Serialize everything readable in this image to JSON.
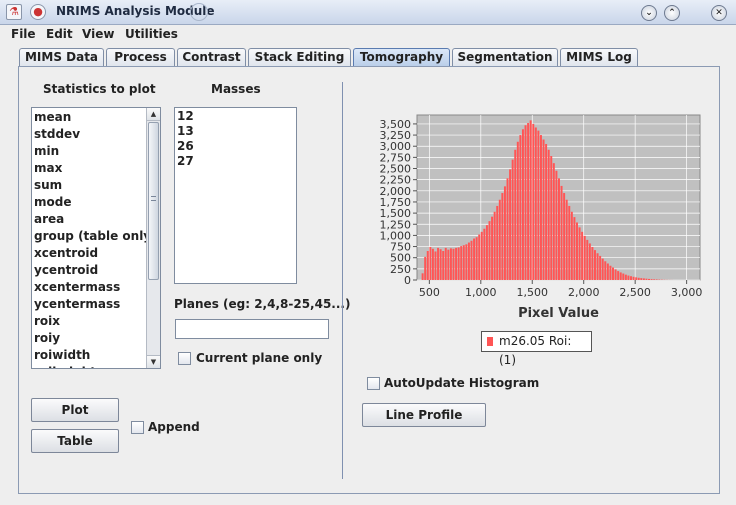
{
  "window": {
    "title": "NRIMS Analysis Module"
  },
  "menu": [
    "File",
    "Edit",
    "View",
    "Utilities"
  ],
  "tabs": [
    "MIMS Data",
    "Process",
    "Contrast",
    "Stack Editing",
    "Tomography",
    "Segmentation",
    "MIMS Log"
  ],
  "active_tab": "Tomography",
  "statistics": {
    "label": "Statistics to plot",
    "items": [
      "mean",
      "stddev",
      "min",
      "max",
      "sum",
      "mode",
      "area",
      "group (table only)",
      "xcentroid",
      "ycentroid",
      "xcentermass",
      "ycentermass",
      "roix",
      "roiy",
      "roiwidth",
      "roiheight"
    ]
  },
  "masses": {
    "label": "Masses",
    "items": [
      "12",
      "13",
      "26",
      "27"
    ]
  },
  "planes": {
    "label": "Planes (eg: 2,4,8-25,45...)",
    "value": ""
  },
  "current_plane_only": {
    "label": "Current plane only",
    "checked": false
  },
  "buttons": {
    "plot": "Plot",
    "table": "Table",
    "line_profile": "Line Profile"
  },
  "append": {
    "label": "Append",
    "checked": false
  },
  "autoupdate": {
    "label": "AutoUpdate Histogram",
    "checked": false
  },
  "chart_data": {
    "type": "bar",
    "xlabel": "Pixel Value",
    "ylabel": "",
    "xlim": [
      380,
      3130
    ],
    "ylim": [
      0,
      3700
    ],
    "xticks": [
      500,
      1000,
      1500,
      2000,
      2500,
      3000
    ],
    "xtick_labels": [
      "500",
      "1,000",
      "1,500",
      "2,000",
      "2,500",
      "3,000"
    ],
    "yticks": [
      0,
      250,
      500,
      750,
      1000,
      1250,
      1500,
      1750,
      2000,
      2250,
      2500,
      2750,
      3000,
      3250,
      3500
    ],
    "ytick_labels": [
      "0",
      "250",
      "500",
      "750",
      "1,000",
      "1,250",
      "1,500",
      "1,750",
      "2,000",
      "2,250",
      "2,500",
      "2,750",
      "3,000",
      "3,250",
      "3,500"
    ],
    "grid": true,
    "bar_color": "#ff5555",
    "plot_bg": "#c0c0c0",
    "series": [
      {
        "name": "m26.05 Roi: (1)",
        "bin_width": 25,
        "x": [
          425,
          450,
          475,
          500,
          525,
          550,
          575,
          600,
          625,
          650,
          675,
          700,
          725,
          750,
          775,
          800,
          825,
          850,
          875,
          900,
          925,
          950,
          975,
          1000,
          1025,
          1050,
          1075,
          1100,
          1125,
          1150,
          1175,
          1200,
          1225,
          1250,
          1275,
          1300,
          1325,
          1350,
          1375,
          1400,
          1425,
          1450,
          1475,
          1500,
          1525,
          1550,
          1575,
          1600,
          1625,
          1650,
          1675,
          1700,
          1725,
          1750,
          1775,
          1800,
          1825,
          1850,
          1875,
          1900,
          1925,
          1950,
          1975,
          2000,
          2025,
          2050,
          2075,
          2100,
          2125,
          2150,
          2175,
          2200,
          2225,
          2250,
          2275,
          2300,
          2325,
          2350,
          2375,
          2400,
          2425,
          2450,
          2475,
          2500,
          2525,
          2550,
          2575,
          2600,
          2625,
          2650,
          2675,
          2700,
          2725,
          2750,
          2775,
          2800,
          2825,
          2850
        ],
        "values": [
          150,
          520,
          650,
          740,
          700,
          640,
          720,
          690,
          650,
          720,
          680,
          710,
          700,
          720,
          730,
          760,
          780,
          800,
          840,
          880,
          930,
          960,
          1020,
          1080,
          1150,
          1230,
          1320,
          1420,
          1530,
          1660,
          1800,
          1950,
          2100,
          2280,
          2480,
          2700,
          2920,
          3100,
          3250,
          3380,
          3470,
          3520,
          3580,
          3500,
          3420,
          3350,
          3250,
          3150,
          3050,
          2920,
          2780,
          2620,
          2450,
          2280,
          2110,
          1950,
          1800,
          1660,
          1530,
          1410,
          1290,
          1180,
          1080,
          990,
          900,
          820,
          740,
          670,
          600,
          540,
          480,
          420,
          370,
          320,
          280,
          240,
          200,
          170,
          145,
          120,
          100,
          85,
          72,
          60,
          50,
          42,
          36,
          30,
          24,
          19,
          15,
          12,
          9,
          7,
          5,
          3,
          2,
          1
        ]
      }
    ]
  }
}
